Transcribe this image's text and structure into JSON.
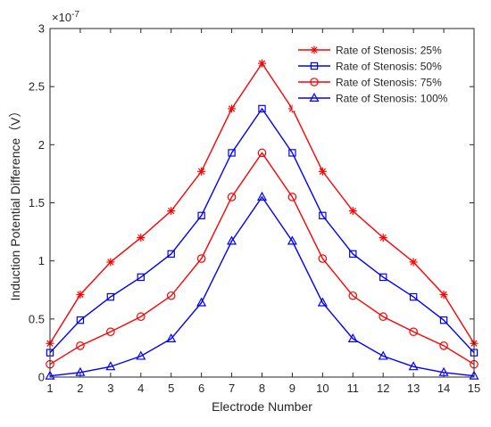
{
  "chart_data": {
    "type": "line",
    "title": "",
    "xlabel": "Electrode Number",
    "ylabel": "Induction Potential Difference（V）",
    "y_exponent_label": "×10",
    "y_exponent_power": "-7",
    "xlim": [
      1,
      15
    ],
    "ylim": [
      0,
      3
    ],
    "x_ticks": [
      "1",
      "2",
      "3",
      "4",
      "5",
      "6",
      "7",
      "8",
      "9",
      "10",
      "11",
      "12",
      "13",
      "14",
      "15"
    ],
    "y_ticks": [
      "0",
      "0.5",
      "1",
      "1.5",
      "2",
      "2.5",
      "3"
    ],
    "y_tick_values": [
      0,
      0.5,
      1,
      1.5,
      2,
      2.5,
      3
    ],
    "grid": false,
    "legend_position": "top-right",
    "x": [
      1,
      2,
      3,
      4,
      5,
      6,
      7,
      8,
      9,
      10,
      11,
      12,
      13,
      14,
      15
    ],
    "series": [
      {
        "name": "Rate of Stenosis: 25%",
        "color": "#ff0000",
        "marker": "asterisk",
        "values": [
          0.29,
          0.71,
          0.99,
          1.2,
          1.43,
          1.77,
          2.31,
          2.7,
          2.31,
          1.77,
          1.43,
          1.2,
          0.99,
          0.71,
          0.29
        ]
      },
      {
        "name": "Rate of Stenosis: 50%",
        "color": "#0000ff",
        "marker": "square",
        "values": [
          0.21,
          0.49,
          0.69,
          0.86,
          1.06,
          1.39,
          1.93,
          2.31,
          1.93,
          1.39,
          1.06,
          0.86,
          0.69,
          0.49,
          0.21
        ]
      },
      {
        "name": "Rate of Stenosis: 75%",
        "color": "#ff0000",
        "marker": "circle",
        "values": [
          0.11,
          0.27,
          0.39,
          0.52,
          0.7,
          1.02,
          1.55,
          1.93,
          1.55,
          1.02,
          0.7,
          0.52,
          0.39,
          0.27,
          0.11
        ]
      },
      {
        "name": "Rate of Stenosis: 100%",
        "color": "#0000ff",
        "marker": "triangle",
        "values": [
          0.01,
          0.04,
          0.09,
          0.18,
          0.33,
          0.64,
          1.17,
          1.55,
          1.17,
          0.64,
          0.33,
          0.18,
          0.09,
          0.04,
          0.01
        ]
      }
    ]
  }
}
